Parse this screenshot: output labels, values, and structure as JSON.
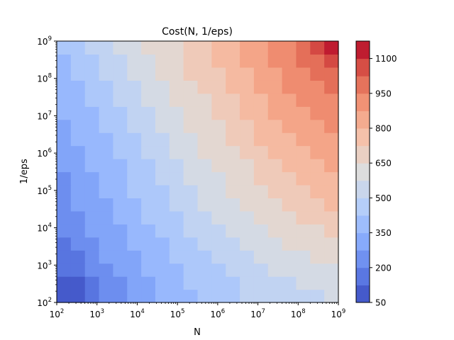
{
  "chart_data": {
    "type": "heatmap",
    "title": "Cost(N, 1/eps)",
    "xlabel": "N",
    "ylabel": "1/eps",
    "x_scale": "log",
    "y_scale": "log",
    "xlim": [
      100,
      1000000000
    ],
    "ylim": [
      100,
      1000000000
    ],
    "x_tick_labels": [
      {
        "base": "10",
        "exp": "2"
      },
      {
        "base": "10",
        "exp": "3"
      },
      {
        "base": "10",
        "exp": "4"
      },
      {
        "base": "10",
        "exp": "5"
      },
      {
        "base": "10",
        "exp": "6"
      },
      {
        "base": "10",
        "exp": "7"
      },
      {
        "base": "10",
        "exp": "8"
      },
      {
        "base": "10",
        "exp": "9"
      }
    ],
    "y_tick_labels": [
      {
        "base": "10",
        "exp": "2"
      },
      {
        "base": "10",
        "exp": "3"
      },
      {
        "base": "10",
        "exp": "4"
      },
      {
        "base": "10",
        "exp": "5"
      },
      {
        "base": "10",
        "exp": "6"
      },
      {
        "base": "10",
        "exp": "7"
      },
      {
        "base": "10",
        "exp": "8"
      },
      {
        "base": "10",
        "exp": "9"
      }
    ],
    "colormap": "coolwarm",
    "grid": false,
    "x_log10_grid_edges": [
      2.0,
      2.35,
      2.7,
      3.05,
      3.4,
      3.75,
      4.1,
      4.45,
      4.8,
      5.15,
      5.5,
      5.85,
      6.2,
      6.55,
      6.9,
      7.25,
      7.6,
      7.95,
      8.3,
      8.65,
      9.0
    ],
    "y_log10_grid_edges": [
      2.0,
      2.35,
      2.7,
      3.05,
      3.4,
      3.75,
      4.1,
      4.45,
      4.8,
      5.15,
      5.5,
      5.85,
      6.2,
      6.55,
      6.9,
      7.25,
      7.6,
      7.95,
      8.3,
      8.65,
      9.0
    ],
    "values_row_order": "bottom to top",
    "values": [
      [
        50,
        50,
        125,
        200,
        200,
        275,
        275,
        350,
        350,
        350,
        425,
        425,
        425,
        500,
        500,
        500,
        500,
        500,
        500,
        575
      ],
      [
        50,
        50,
        125,
        200,
        200,
        275,
        275,
        350,
        350,
        425,
        425,
        425,
        425,
        500,
        500,
        500,
        500,
        575,
        575,
        575
      ],
      [
        125,
        125,
        200,
        200,
        275,
        275,
        350,
        350,
        350,
        425,
        425,
        425,
        500,
        500,
        500,
        575,
        575,
        575,
        575,
        575
      ],
      [
        125,
        125,
        200,
        275,
        275,
        275,
        350,
        350,
        425,
        425,
        425,
        500,
        500,
        500,
        575,
        575,
        575,
        575,
        650,
        650
      ],
      [
        125,
        200,
        200,
        275,
        275,
        350,
        350,
        350,
        425,
        425,
        500,
        500,
        500,
        575,
        575,
        575,
        650,
        650,
        650,
        650
      ],
      [
        200,
        200,
        275,
        275,
        275,
        350,
        350,
        425,
        425,
        500,
        500,
        500,
        575,
        575,
        575,
        650,
        650,
        650,
        650,
        725
      ],
      [
        200,
        200,
        275,
        275,
        350,
        350,
        425,
        425,
        425,
        500,
        500,
        575,
        575,
        575,
        650,
        650,
        650,
        725,
        725,
        725
      ],
      [
        200,
        275,
        275,
        275,
        350,
        350,
        425,
        425,
        500,
        500,
        575,
        575,
        575,
        650,
        650,
        650,
        725,
        725,
        725,
        800
      ],
      [
        200,
        275,
        275,
        350,
        350,
        425,
        425,
        425,
        500,
        500,
        575,
        575,
        650,
        650,
        650,
        725,
        725,
        725,
        800,
        800
      ],
      [
        200,
        275,
        275,
        350,
        350,
        425,
        425,
        500,
        500,
        575,
        575,
        575,
        650,
        650,
        725,
        725,
        725,
        800,
        800,
        800
      ],
      [
        275,
        275,
        350,
        350,
        350,
        425,
        425,
        500,
        500,
        575,
        575,
        650,
        650,
        650,
        725,
        725,
        800,
        800,
        800,
        875
      ],
      [
        275,
        275,
        350,
        350,
        425,
        425,
        500,
        500,
        575,
        575,
        650,
        650,
        650,
        725,
        725,
        800,
        800,
        800,
        875,
        875
      ],
      [
        275,
        350,
        350,
        350,
        425,
        425,
        500,
        500,
        575,
        575,
        650,
        650,
        725,
        725,
        800,
        800,
        800,
        875,
        875,
        875
      ],
      [
        275,
        350,
        350,
        425,
        425,
        500,
        500,
        575,
        575,
        650,
        650,
        650,
        725,
        725,
        800,
        800,
        875,
        875,
        875,
        950
      ],
      [
        350,
        350,
        350,
        425,
        425,
        500,
        500,
        575,
        575,
        650,
        650,
        725,
        725,
        800,
        800,
        875,
        875,
        875,
        950,
        950
      ],
      [
        350,
        350,
        425,
        425,
        500,
        500,
        575,
        575,
        650,
        650,
        650,
        725,
        725,
        800,
        800,
        875,
        875,
        950,
        950,
        950
      ],
      [
        350,
        350,
        425,
        425,
        500,
        500,
        575,
        575,
        650,
        650,
        725,
        725,
        800,
        800,
        875,
        875,
        950,
        950,
        950,
        1025
      ],
      [
        350,
        425,
        425,
        500,
        500,
        575,
        575,
        650,
        650,
        725,
        725,
        725,
        800,
        800,
        875,
        875,
        950,
        950,
        1025,
        1025
      ],
      [
        350,
        425,
        425,
        500,
        500,
        575,
        575,
        650,
        650,
        725,
        725,
        800,
        800,
        875,
        875,
        950,
        950,
        1025,
        1025,
        1100
      ],
      [
        425,
        425,
        500,
        500,
        575,
        575,
        650,
        650,
        650,
        725,
        725,
        800,
        800,
        875,
        875,
        950,
        950,
        1025,
        1100,
        1175
      ]
    ],
    "colorbar": {
      "levels": [
        50,
        125,
        200,
        275,
        350,
        425,
        500,
        575,
        650,
        725,
        800,
        875,
        950,
        1025,
        1100,
        1175
      ],
      "range": [
        50,
        1175
      ],
      "tick_values": [
        50,
        200,
        350,
        500,
        650,
        800,
        950,
        1100
      ],
      "tick_labels": [
        "50",
        "200",
        "350",
        "500",
        "650",
        "800",
        "950",
        "1100"
      ]
    }
  }
}
